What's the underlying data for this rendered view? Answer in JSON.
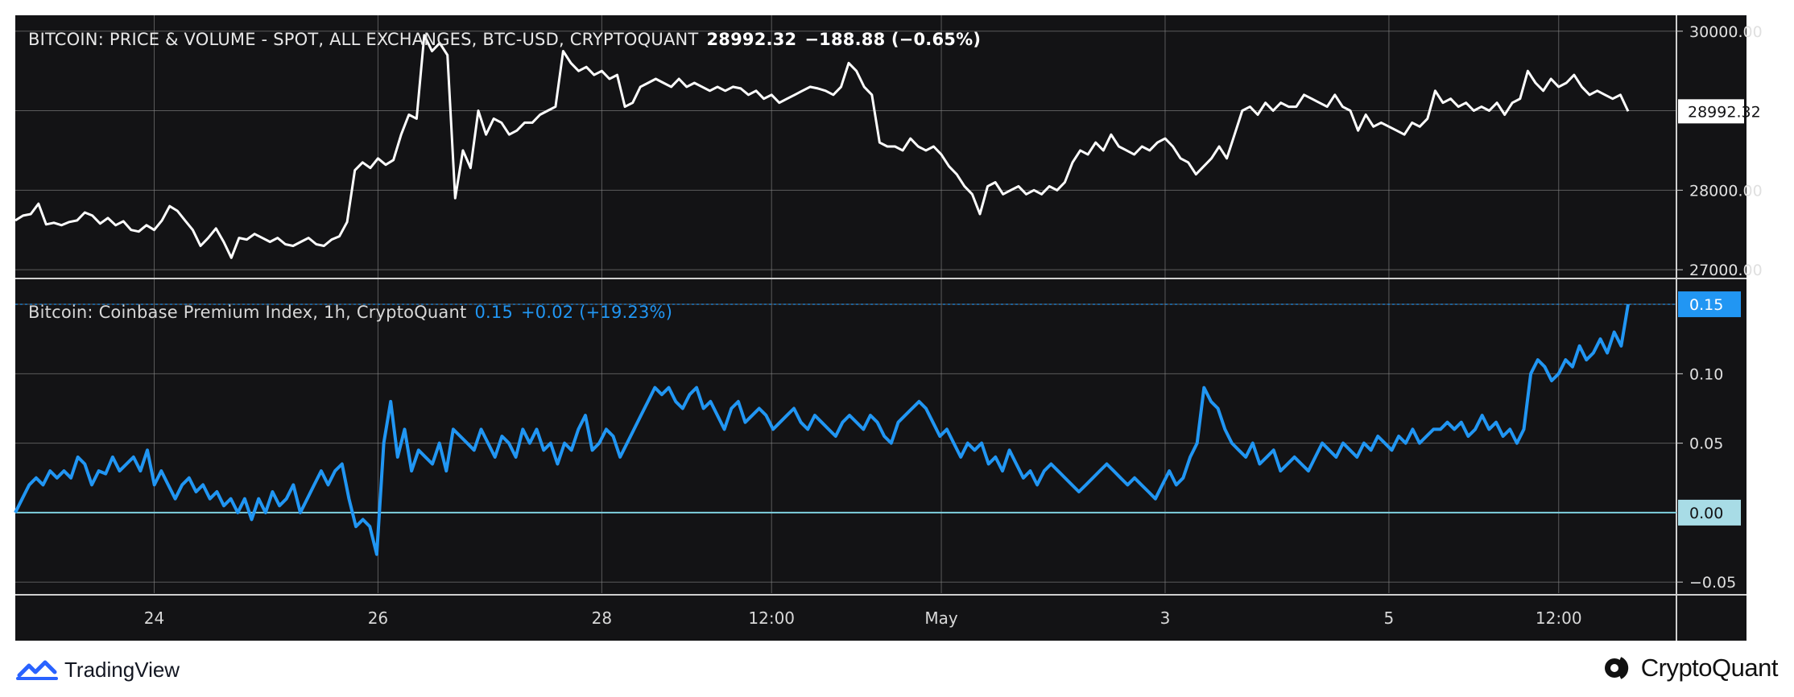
{
  "chart_data": [
    {
      "type": "line",
      "name": "BITCOIN: PRICE & VOLUME - SPOT, ALL EXCHANGES, BTC-USD, CRYPTOQUANT",
      "last_value": "28992.32",
      "change": "−188.88 (−0.65%)",
      "y_ticks": [
        "30000.00",
        "28000.00",
        "27000.00"
      ],
      "ylim": [
        26900,
        30200
      ],
      "x_range": [
        0,
        229
      ],
      "values": [
        27620,
        27680,
        27700,
        27830,
        27570,
        27590,
        27560,
        27600,
        27620,
        27720,
        27680,
        27580,
        27650,
        27560,
        27610,
        27500,
        27480,
        27560,
        27500,
        27620,
        27800,
        27740,
        27620,
        27500,
        27300,
        27400,
        27520,
        27350,
        27150,
        27400,
        27380,
        27450,
        27400,
        27350,
        27400,
        27320,
        27300,
        27350,
        27400,
        27320,
        27300,
        27380,
        27420,
        27600,
        28250,
        28350,
        28280,
        28400,
        28320,
        28380,
        28700,
        28950,
        28900,
        29950,
        29750,
        29850,
        29700,
        27900,
        28500,
        28280,
        29000,
        28700,
        28900,
        28850,
        28700,
        28750,
        28850,
        28850,
        28950,
        29000,
        29050,
        29750,
        29600,
        29500,
        29550,
        29450,
        29500,
        29400,
        29450,
        29050,
        29100,
        29300,
        29350,
        29400,
        29350,
        29300,
        29400,
        29300,
        29350,
        29300,
        29250,
        29300,
        29250,
        29300,
        29280,
        29200,
        29250,
        29150,
        29200,
        29100,
        29150,
        29200,
        29250,
        29300,
        29280,
        29250,
        29200,
        29300,
        29600,
        29500,
        29300,
        29200,
        28600,
        28550,
        28550,
        28500,
        28650,
        28550,
        28500,
        28550,
        28450,
        28300,
        28200,
        28050,
        27950,
        27700,
        28050,
        28100,
        27950,
        28000,
        28050,
        27950,
        28000,
        27950,
        28050,
        28000,
        28100,
        28350,
        28500,
        28450,
        28600,
        28500,
        28700,
        28550,
        28500,
        28450,
        28550,
        28500,
        28600,
        28650,
        28550,
        28400,
        28350,
        28200,
        28300,
        28400,
        28550,
        28400,
        28700,
        29000,
        29050,
        28950,
        29100,
        29000,
        29100,
        29050,
        29050,
        29200,
        29150,
        29100,
        29050,
        29200,
        29050,
        29000,
        28750,
        28950,
        28800,
        28850,
        28800,
        28750,
        28700,
        28850,
        28800,
        28900,
        29250,
        29100,
        29150,
        29050,
        29100,
        29000,
        29050,
        29000,
        29100,
        28950,
        29100,
        29150,
        29500,
        29350,
        29250,
        29400,
        29300,
        29350,
        29450,
        29300,
        29200,
        29250,
        29200,
        29150,
        29200,
        28992
      ]
    },
    {
      "type": "line",
      "name": "Bitcoin: Coinbase Premium Index, 1h, CryptoQuant",
      "last_value": "0.15",
      "change": "+0.02 (+19.23%)",
      "y_ticks": [
        "0.10",
        "0.05",
        "−0.05"
      ],
      "zero_label": "0.00",
      "ylim": [
        -0.058,
        0.168
      ],
      "values": [
        0.0,
        0.01,
        0.02,
        0.025,
        0.02,
        0.03,
        0.025,
        0.03,
        0.025,
        0.04,
        0.035,
        0.02,
        0.03,
        0.028,
        0.04,
        0.03,
        0.035,
        0.04,
        0.03,
        0.045,
        0.02,
        0.03,
        0.02,
        0.01,
        0.02,
        0.025,
        0.015,
        0.02,
        0.01,
        0.015,
        0.005,
        0.01,
        0.0,
        0.01,
        -0.005,
        0.01,
        0.0,
        0.015,
        0.005,
        0.01,
        0.02,
        0.0,
        0.01,
        0.02,
        0.03,
        0.02,
        0.03,
        0.035,
        0.01,
        -0.01,
        -0.005,
        -0.01,
        -0.03,
        0.05,
        0.08,
        0.04,
        0.06,
        0.03,
        0.045,
        0.04,
        0.035,
        0.05,
        0.03,
        0.06,
        0.055,
        0.05,
        0.045,
        0.06,
        0.05,
        0.04,
        0.055,
        0.05,
        0.04,
        0.06,
        0.05,
        0.06,
        0.045,
        0.05,
        0.035,
        0.05,
        0.045,
        0.06,
        0.07,
        0.045,
        0.05,
        0.06,
        0.055,
        0.04,
        0.05,
        0.06,
        0.07,
        0.08,
        0.09,
        0.085,
        0.09,
        0.08,
        0.075,
        0.085,
        0.09,
        0.075,
        0.08,
        0.07,
        0.06,
        0.075,
        0.08,
        0.065,
        0.07,
        0.075,
        0.07,
        0.06,
        0.065,
        0.07,
        0.075,
        0.065,
        0.06,
        0.07,
        0.065,
        0.06,
        0.055,
        0.065,
        0.07,
        0.065,
        0.06,
        0.07,
        0.065,
        0.055,
        0.05,
        0.065,
        0.07,
        0.075,
        0.08,
        0.075,
        0.065,
        0.055,
        0.06,
        0.05,
        0.04,
        0.05,
        0.045,
        0.05,
        0.035,
        0.04,
        0.03,
        0.045,
        0.035,
        0.025,
        0.03,
        0.02,
        0.03,
        0.035,
        0.03,
        0.025,
        0.02,
        0.015,
        0.02,
        0.025,
        0.03,
        0.035,
        0.03,
        0.025,
        0.02,
        0.025,
        0.02,
        0.015,
        0.01,
        0.02,
        0.03,
        0.02,
        0.025,
        0.04,
        0.05,
        0.09,
        0.08,
        0.075,
        0.06,
        0.05,
        0.045,
        0.04,
        0.05,
        0.035,
        0.04,
        0.045,
        0.03,
        0.035,
        0.04,
        0.035,
        0.03,
        0.04,
        0.05,
        0.045,
        0.04,
        0.05,
        0.045,
        0.04,
        0.05,
        0.045,
        0.055,
        0.05,
        0.045,
        0.055,
        0.05,
        0.06,
        0.05,
        0.055,
        0.06,
        0.06,
        0.065,
        0.06,
        0.065,
        0.055,
        0.06,
        0.07,
        0.06,
        0.065,
        0.055,
        0.06,
        0.05,
        0.06,
        0.1,
        0.11,
        0.105,
        0.095,
        0.1,
        0.11,
        0.105,
        0.12,
        0.11,
        0.115,
        0.125,
        0.115,
        0.13,
        0.12,
        0.15
      ],
      "color": "#2196f3"
    }
  ],
  "x_ticks": [
    "24",
    "26",
    "28",
    "12:00",
    "May",
    "3",
    "5",
    "12:00"
  ],
  "brand_left": "TradingView",
  "brand_right": "CryptoQuant",
  "colors": {
    "background": "#131315",
    "price_line": "#ffffff",
    "premium_line": "#2196f3",
    "zero_line": "#7fd0df",
    "grid": "#8a8a8a"
  }
}
